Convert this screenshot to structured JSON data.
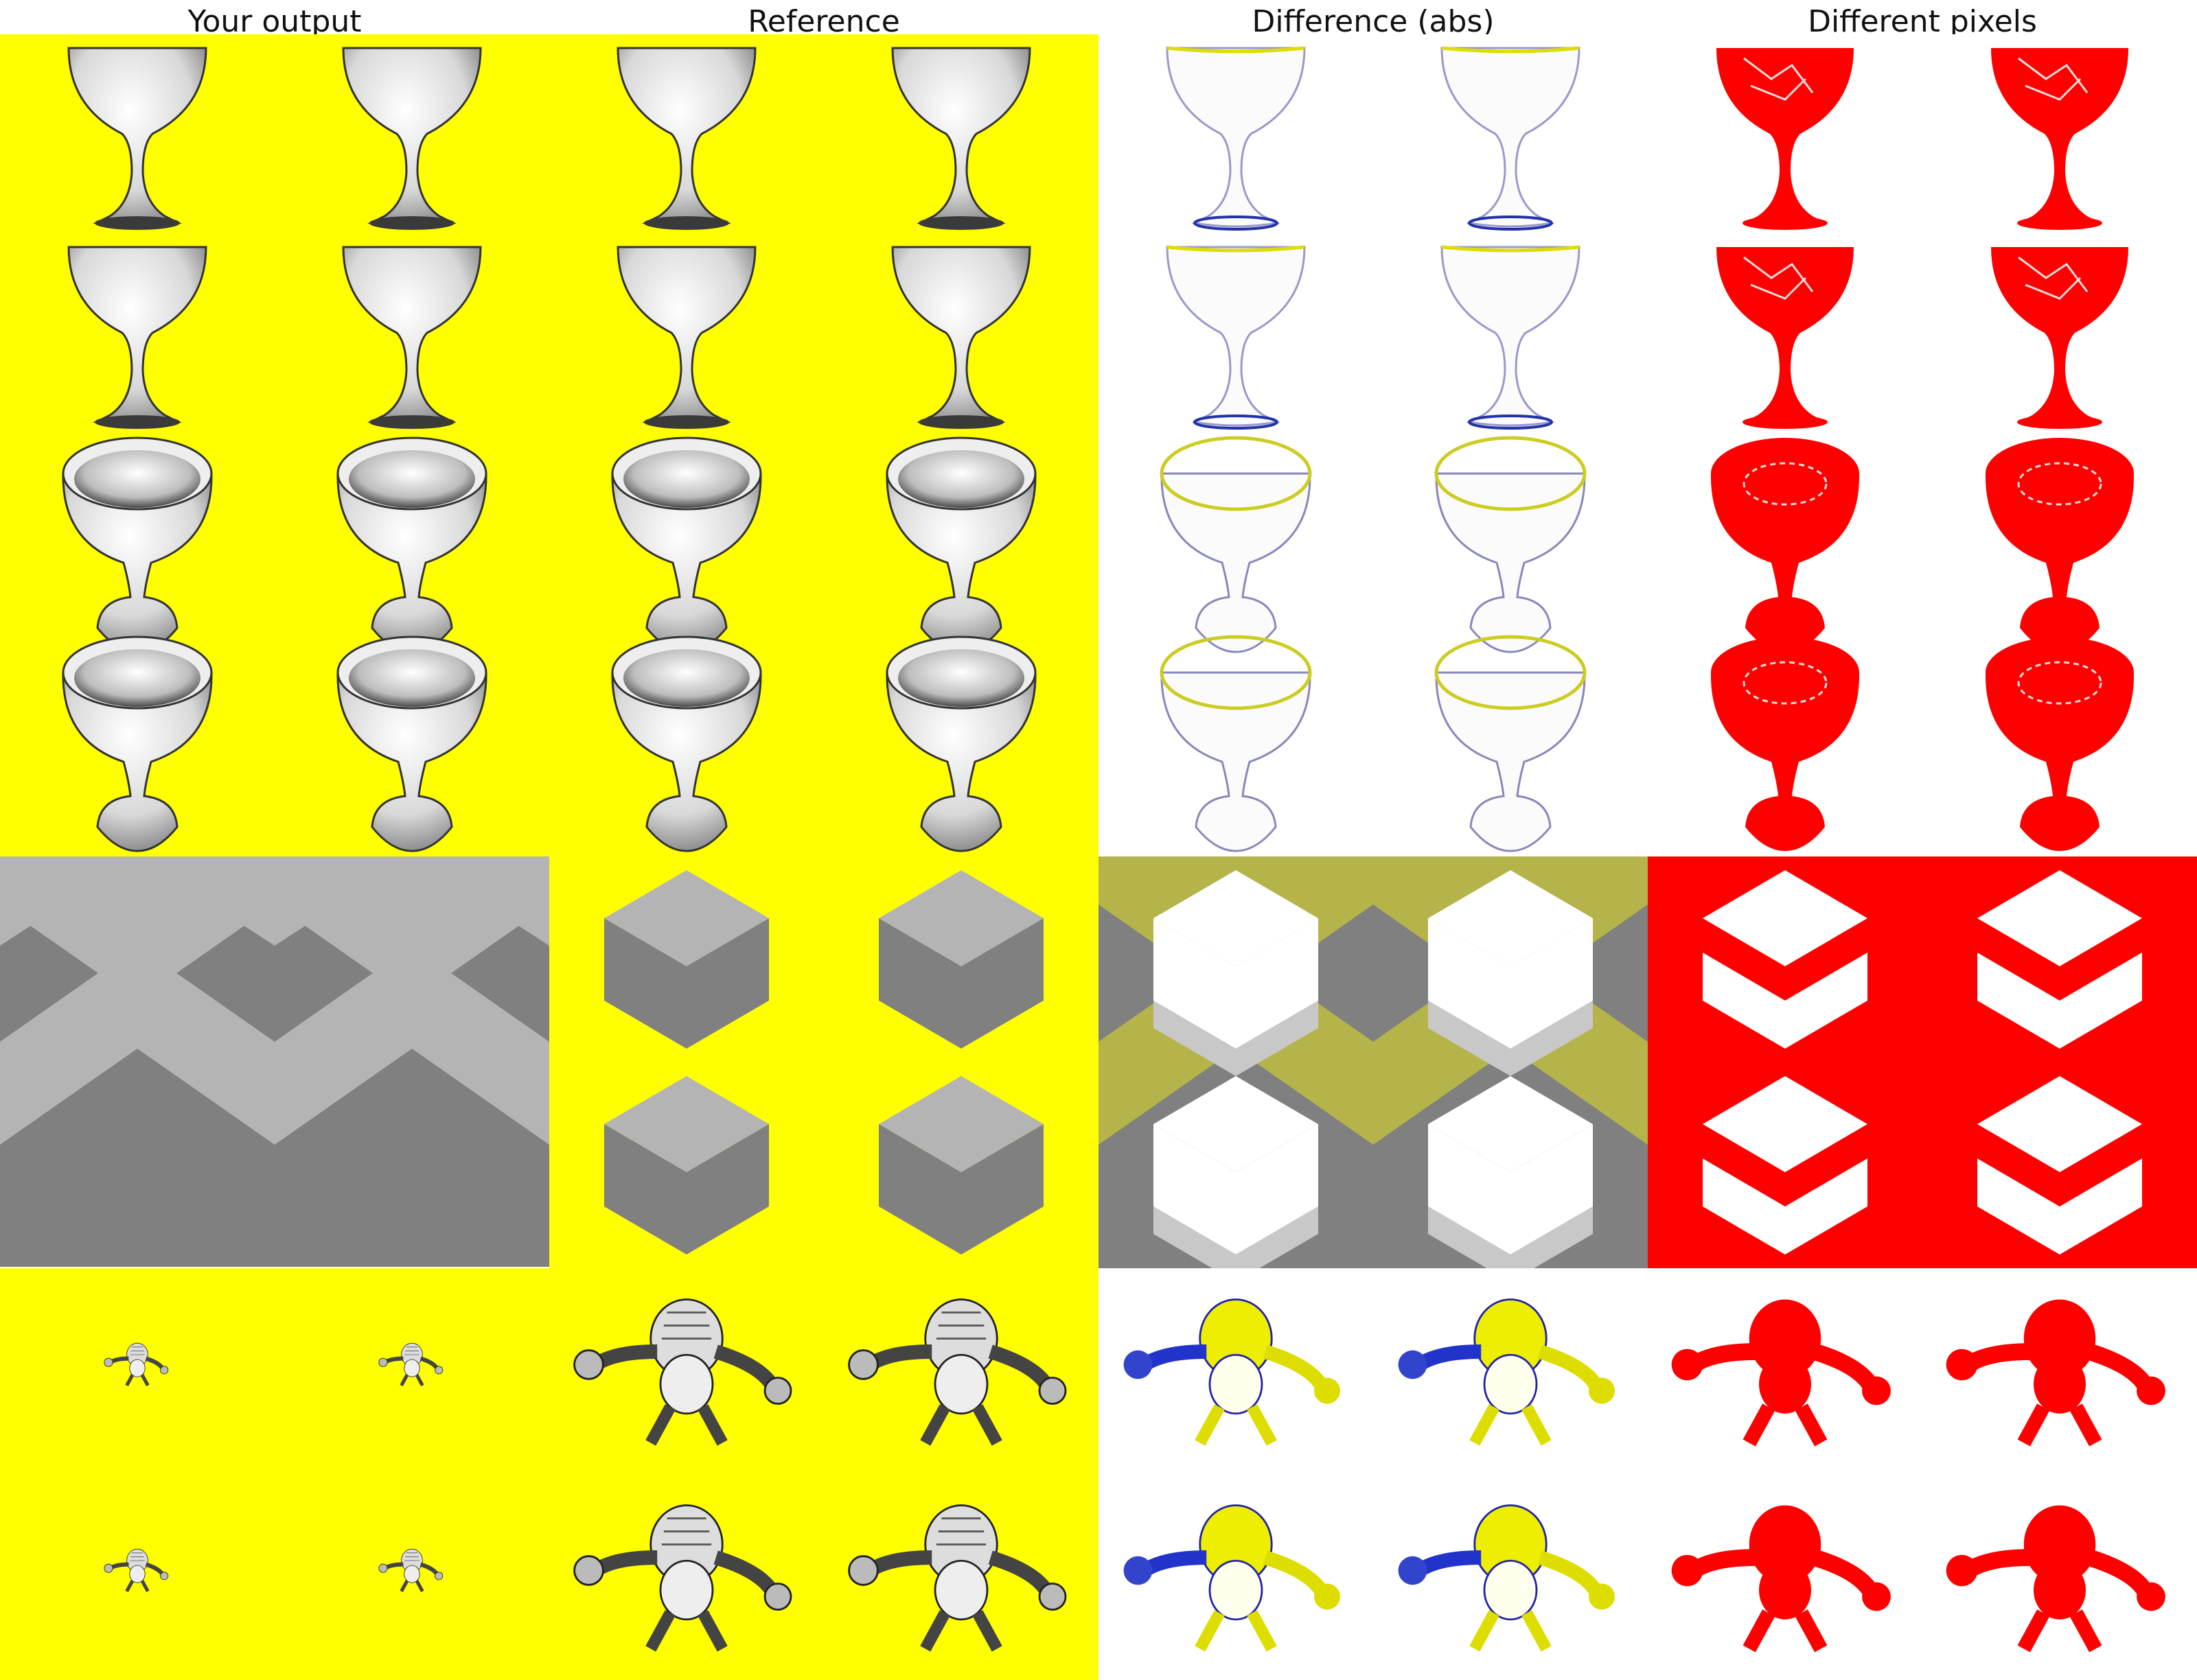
{
  "columns": {
    "output": "Your output",
    "reference": "Reference",
    "difference": "Difference (abs)",
    "different_pixels": "Different pixels"
  },
  "colors": {
    "background": "#ffff00",
    "diff_background": "#ffffff",
    "mask": "#ff0000",
    "cube_top": "#b4b4b4",
    "cube_side": "#808080"
  },
  "rows": [
    "goblet-side-view",
    "goblet-top-view",
    "cube",
    "armored-creature"
  ]
}
